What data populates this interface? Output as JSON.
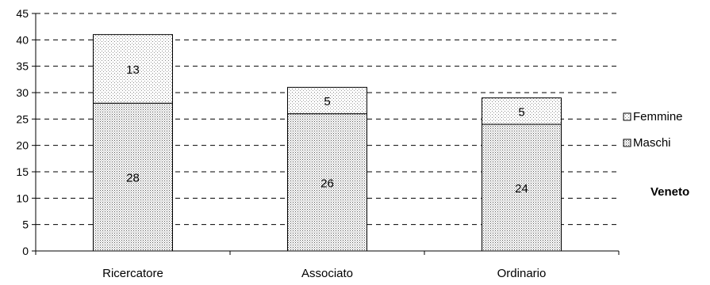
{
  "chart_data": {
    "type": "bar",
    "stacked": true,
    "categories": [
      "Ricercatore",
      "Associato",
      "Ordinario"
    ],
    "series": [
      {
        "name": "Maschi",
        "values": [
          28,
          26,
          24
        ],
        "pattern": "dense-dots"
      },
      {
        "name": "Femmine",
        "values": [
          13,
          5,
          5
        ],
        "pattern": "sparse-dots"
      }
    ],
    "ylim": [
      0,
      45
    ],
    "yticks": [
      0,
      5,
      10,
      15,
      20,
      25,
      30,
      35,
      40,
      45
    ],
    "grid": "horizontal-dashed",
    "legend_position": "right",
    "legend_order": [
      "Femmine",
      "Maschi"
    ],
    "annotation": "Veneto",
    "colors": {
      "axis": "#000000",
      "grid": "#000000",
      "bar_fill": "#ffffff",
      "dot": "#666666"
    }
  }
}
